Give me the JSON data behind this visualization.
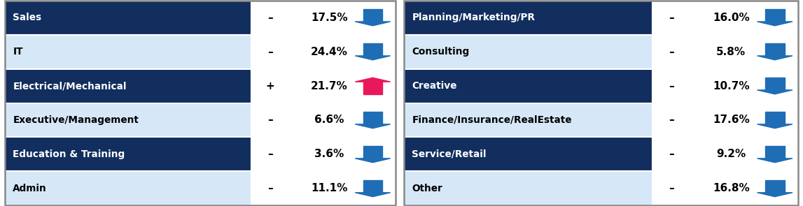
{
  "rows": [
    {
      "label": "Sales",
      "sign": "–",
      "pct": "17.5%",
      "direction": "down",
      "bg": "#112e5e",
      "text_color": "#ffffff",
      "val_color": "#000000"
    },
    {
      "label": "IT",
      "sign": "–",
      "pct": "24.4%",
      "direction": "down",
      "bg": "#d6e8f7",
      "text_color": "#000000",
      "val_color": "#000000"
    },
    {
      "label": "Electrical/Mechanical",
      "sign": "+",
      "pct": "21.7%",
      "direction": "up",
      "bg": "#112e5e",
      "text_color": "#ffffff",
      "val_color": "#000000"
    },
    {
      "label": "Executive/Management",
      "sign": "–",
      "pct": "6.6%",
      "direction": "down",
      "bg": "#d6e8f7",
      "text_color": "#000000",
      "val_color": "#000000"
    },
    {
      "label": "Education & Training",
      "sign": "–",
      "pct": "3.6%",
      "direction": "down",
      "bg": "#112e5e",
      "text_color": "#ffffff",
      "val_color": "#000000"
    },
    {
      "label": "Admin",
      "sign": "–",
      "pct": "11.1%",
      "direction": "down",
      "bg": "#d6e8f7",
      "text_color": "#000000",
      "val_color": "#000000"
    }
  ],
  "rows_right": [
    {
      "label": "Planning/Marketing/PR",
      "sign": "–",
      "pct": "16.0%",
      "direction": "down",
      "bg": "#112e5e",
      "text_color": "#ffffff",
      "val_color": "#000000"
    },
    {
      "label": "Consulting",
      "sign": "–",
      "pct": "5.8%",
      "direction": "down",
      "bg": "#d6e8f7",
      "text_color": "#000000",
      "val_color": "#000000"
    },
    {
      "label": "Creative",
      "sign": "–",
      "pct": "10.7%",
      "direction": "down",
      "bg": "#112e5e",
      "text_color": "#ffffff",
      "val_color": "#000000"
    },
    {
      "label": "Finance/Insurance/RealEstate",
      "sign": "–",
      "pct": "17.6%",
      "direction": "down",
      "bg": "#d6e8f7",
      "text_color": "#000000",
      "val_color": "#000000"
    },
    {
      "label": "Service/Retail",
      "sign": "–",
      "pct": "9.2%",
      "direction": "down",
      "bg": "#112e5e",
      "text_color": "#ffffff",
      "val_color": "#000000"
    },
    {
      "label": "Other",
      "sign": "–",
      "pct": "16.8%",
      "direction": "down",
      "bg": "#d6e8f7",
      "text_color": "#000000",
      "val_color": "#000000"
    }
  ],
  "arrow_down_color": "#1f6db5",
  "arrow_up_color": "#e8185a",
  "cell_border_color": "#ffffff",
  "outer_border_color": "#888888",
  "n_rows": 6,
  "fig_w": 11.47,
  "fig_h": 2.95,
  "dpi": 100
}
